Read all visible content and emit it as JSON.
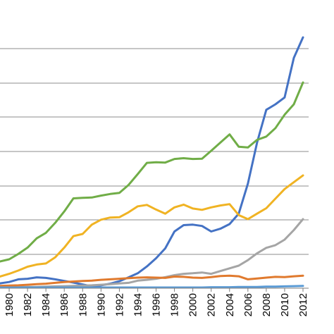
{
  "chart_data": {
    "type": "line",
    "title": "",
    "xlabel": "",
    "ylabel": "",
    "grid": true,
    "legend": "none",
    "xlim": [
      1979,
      2012
    ],
    "ylim": [
      0,
      100
    ],
    "x": [
      1979,
      1980,
      1981,
      1982,
      1983,
      1984,
      1985,
      1986,
      1987,
      1988,
      1989,
      1990,
      1991,
      1992,
      1993,
      1994,
      1995,
      1996,
      1997,
      1998,
      1999,
      2000,
      2001,
      2002,
      2003,
      2004,
      2005,
      2006,
      2007,
      2008,
      2009,
      2010,
      2011,
      2012
    ],
    "x_tick_labels": [
      "1980",
      "1982",
      "1984",
      "1986",
      "1988",
      "1990",
      "1992",
      "1994",
      "1996",
      "1998",
      "2000",
      "2002",
      "2004",
      "2006",
      "2008",
      "2010",
      "2012"
    ],
    "x_tick_values": [
      1980,
      1982,
      1984,
      1986,
      1988,
      1990,
      1992,
      1994,
      1996,
      1998,
      2000,
      2002,
      2004,
      2006,
      2008,
      2010,
      2012
    ],
    "series": [
      {
        "color": "#4472c4",
        "values": [
          1.5,
          2,
          3,
          3.2,
          3.7,
          3.5,
          3,
          2.4,
          1.8,
          1.1,
          0.4,
          0.8,
          1.4,
          2.3,
          3.7,
          5.2,
          7.7,
          10.7,
          14.3,
          20.5,
          22.8,
          23,
          22.5,
          20.5,
          21.5,
          23.2,
          27,
          38,
          53,
          65,
          67,
          69.5,
          84,
          91.5
        ]
      },
      {
        "color": "#70ad47",
        "values": [
          9.5,
          10.3,
          12.3,
          14.6,
          18,
          20,
          23.6,
          27.8,
          32.6,
          32.8,
          32.9,
          33.6,
          34.2,
          34.6,
          37.5,
          41.5,
          45.6,
          45.8,
          45.7,
          47,
          47.3,
          47,
          47.1,
          50,
          53,
          56,
          51.5,
          51.2,
          54,
          55.2,
          58.3,
          63.2,
          67,
          75
        ]
      },
      {
        "color": "#f0b323",
        "values": [
          4,
          5,
          6.2,
          7.6,
          8.4,
          8.8,
          11,
          14.6,
          18.8,
          19.6,
          23,
          24.8,
          25.6,
          25.7,
          27.5,
          29.7,
          30.2,
          28.5,
          27,
          29.3,
          30.3,
          28.9,
          28.4,
          29.3,
          30,
          30.5,
          26.5,
          25,
          27,
          29,
          32.5,
          36,
          38.5,
          41
        ]
      },
      {
        "color": "#a5a5a5",
        "values": [
          0.1,
          0.1,
          0.1,
          0.2,
          0.2,
          0.3,
          0.4,
          0.5,
          0.6,
          0.7,
          0.8,
          1,
          1.2,
          1.5,
          1.7,
          2.5,
          2.8,
          3.2,
          3.8,
          4.5,
          5,
          5.2,
          5.5,
          5,
          6,
          7,
          8,
          10,
          12.5,
          14.5,
          15.5,
          17.5,
          21,
          25
        ]
      },
      {
        "color": "#e07a2e",
        "values": [
          0.6,
          0.7,
          0.8,
          1,
          1.2,
          1.4,
          1.7,
          2,
          2.2,
          2.4,
          2.5,
          2.8,
          3,
          3.2,
          3.4,
          3.6,
          3.7,
          3.6,
          3.5,
          4,
          3.9,
          3.6,
          3.5,
          3.8,
          4.2,
          4.3,
          4.1,
          3,
          3.3,
          3.6,
          3.9,
          3.8,
          4.1,
          4.3
        ]
      },
      {
        "color": "#5b9bd5",
        "values": [
          0,
          0,
          0,
          0,
          0,
          0,
          0,
          0,
          0,
          0,
          0,
          0,
          0,
          0,
          0,
          0,
          0,
          0,
          0,
          0,
          0,
          0,
          0,
          0.1,
          0.1,
          0.1,
          0.2,
          0.2,
          0.2,
          0.3,
          0.3,
          0.4,
          0.5,
          0.6
        ]
      }
    ]
  }
}
